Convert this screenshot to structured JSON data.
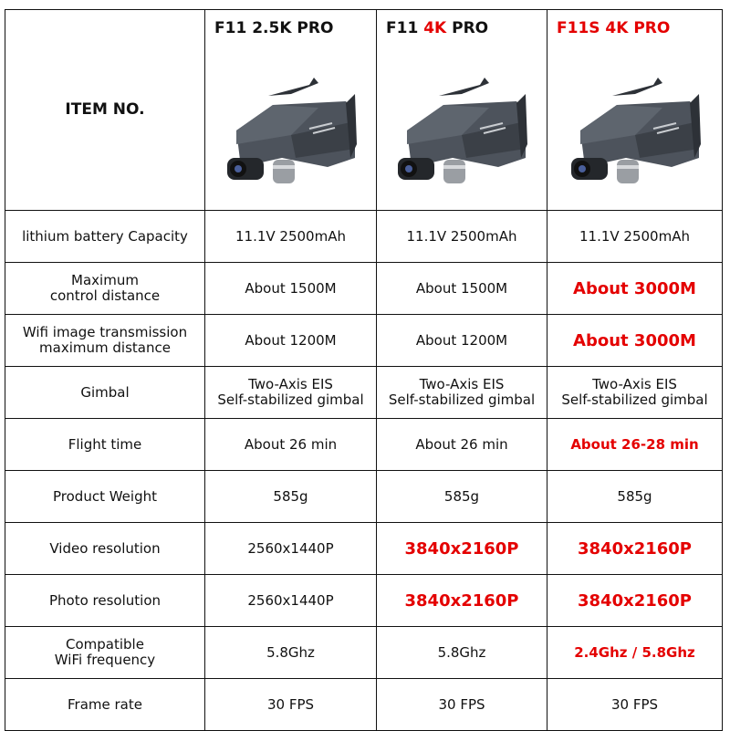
{
  "header": {
    "item_label": "ITEM NO.",
    "products": [
      {
        "prefix": "F11 ",
        "accent": "",
        "suffix": "2.5K PRO",
        "accent_whole": false
      },
      {
        "prefix": "F11 ",
        "accent": "4K",
        "suffix": " PRO",
        "accent_whole": false
      },
      {
        "prefix": "",
        "accent": "F11S 4K PRO",
        "suffix": "",
        "accent_whole": true
      }
    ]
  },
  "colors": {
    "accent": "#e40000",
    "text": "#111111",
    "border": "#111111"
  },
  "rows": [
    {
      "label": "lithium battery Capacity",
      "values": [
        {
          "text": "11.1V 2500mAh",
          "highlight": false
        },
        {
          "text": "11.1V 2500mAh",
          "highlight": false
        },
        {
          "text": "11.1V 2500mAh",
          "highlight": false
        }
      ]
    },
    {
      "label": "Maximum\ncontrol distance",
      "values": [
        {
          "text": "About 1500M",
          "highlight": false
        },
        {
          "text": "About 1500M",
          "highlight": false
        },
        {
          "text": "About 3000M",
          "highlight": true
        }
      ]
    },
    {
      "label": "Wifi image transmission\nmaximum distance",
      "values": [
        {
          "text": "About 1200M",
          "highlight": false
        },
        {
          "text": "About 1200M",
          "highlight": false
        },
        {
          "text": "About 3000M",
          "highlight": true
        }
      ]
    },
    {
      "label": "Gimbal",
      "values": [
        {
          "text": "Two-Axis EIS\nSelf-stabilized gimbal",
          "highlight": false
        },
        {
          "text": "Two-Axis EIS\nSelf-stabilized gimbal",
          "highlight": false
        },
        {
          "text": "Two-Axis EIS\nSelf-stabilized gimbal",
          "highlight": false
        }
      ]
    },
    {
      "label": "Flight time",
      "values": [
        {
          "text": "About 26 min",
          "highlight": false
        },
        {
          "text": "About 26 min",
          "highlight": false
        },
        {
          "text": "About 26-28 min",
          "highlight": true
        }
      ]
    },
    {
      "label": "Product Weight",
      "values": [
        {
          "text": "585g",
          "highlight": false
        },
        {
          "text": "585g",
          "highlight": false
        },
        {
          "text": "585g",
          "highlight": false
        }
      ]
    },
    {
      "label": "Video resolution",
      "values": [
        {
          "text": "2560x1440P",
          "highlight": false
        },
        {
          "text": "3840x2160P",
          "highlight": true
        },
        {
          "text": "3840x2160P",
          "highlight": true
        }
      ]
    },
    {
      "label": "Photo resolution",
      "values": [
        {
          "text": "2560x1440P",
          "highlight": false
        },
        {
          "text": "3840x2160P",
          "highlight": true
        },
        {
          "text": "3840x2160P",
          "highlight": true
        }
      ]
    },
    {
      "label": "Compatible\nWiFi frequency",
      "values": [
        {
          "text": "5.8Ghz",
          "highlight": false
        },
        {
          "text": "5.8Ghz",
          "highlight": false
        },
        {
          "text": "2.4Ghz / 5.8Ghz",
          "highlight": true
        }
      ]
    },
    {
      "label": "Frame rate",
      "values": [
        {
          "text": "30 FPS",
          "highlight": false
        },
        {
          "text": "30 FPS",
          "highlight": false
        },
        {
          "text": "30 FPS",
          "highlight": false
        }
      ]
    }
  ]
}
